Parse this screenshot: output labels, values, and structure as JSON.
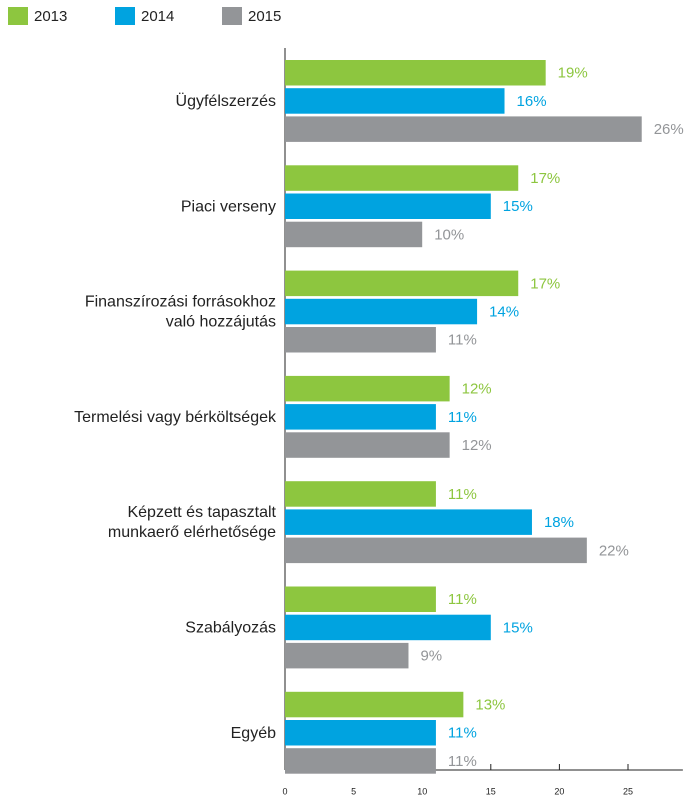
{
  "chart_data": {
    "type": "hbar",
    "categories": [
      "Ügyfélszerzés",
      "Piaci verseny",
      "Finanszírozási forrásokhoz\nvaló hozzájutás",
      "Termelési vagy bérköltségek",
      "Képzett és tapasztalt\nmunkaerő elérhetősége",
      "Szabályozás",
      "Egyéb"
    ],
    "series": [
      {
        "name": "2013",
        "color": "#8dc63f",
        "values": [
          19,
          17,
          17,
          12,
          11,
          11,
          13
        ],
        "value_labels": [
          "19%",
          "17%",
          "17%",
          "12%",
          "11%",
          "11%",
          "13%"
        ]
      },
      {
        "name": "2014",
        "color": "#00a3e0",
        "values": [
          16,
          15,
          14,
          11,
          18,
          15,
          11
        ],
        "value_labels": [
          "16%",
          "15%",
          "14%",
          "11%",
          "18%",
          "15%",
          "11%"
        ]
      },
      {
        "name": "2015",
        "color": "#939598",
        "values": [
          26,
          10,
          11,
          12,
          22,
          9,
          11
        ],
        "value_labels": [
          "26%",
          "10%",
          "11%",
          "12%",
          "22%",
          "9%",
          "11%"
        ]
      }
    ],
    "xlim": [
      0,
      29
    ],
    "xticks": [
      0,
      5,
      10,
      15,
      20,
      25
    ],
    "legend": "top-left"
  }
}
